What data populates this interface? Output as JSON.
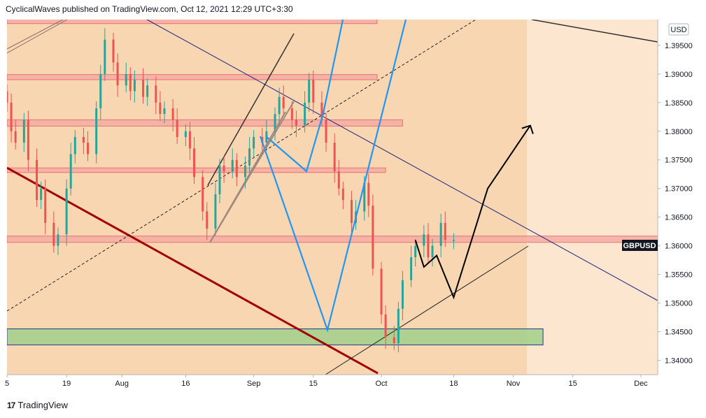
{
  "header": {
    "text": "CyclicalWaves published on TradingView.com, Oct 12, 2021 12:29 UTC+3:30"
  },
  "footer": {
    "logo_mark": "17",
    "brand": "TradingView"
  },
  "colors": {
    "bg": "#fce6cf",
    "shaded": "#f9d6b2",
    "zone": "#f4a6a0",
    "zone_border": "#e57373",
    "green_zone": "#a5d08d",
    "up": "#26a69a",
    "down": "#ef5350",
    "blue": "#2196f3",
    "navy": "#1a237e",
    "darkred": "#a30000",
    "black": "#000000"
  },
  "chart_data": {
    "type": "candlestick",
    "symbol": "GBPUSD",
    "currency": "USD",
    "last_price": 1.36,
    "y_range": [
      1.3375,
      1.3995
    ],
    "y_ticks": [
      "1.39500",
      "1.39000",
      "1.38500",
      "1.38000",
      "1.37500",
      "1.37000",
      "1.36500",
      "1.36000",
      "1.35500",
      "1.35000",
      "1.34500",
      "1.34000"
    ],
    "x_ticks": [
      "5",
      "19",
      "Aug",
      "16",
      "Sep",
      "15",
      "Oct",
      "18",
      "Nov",
      "15",
      "Dec"
    ],
    "candles_start": "2021-07-05",
    "candles_close": [
      1.385,
      1.38,
      1.378,
      1.382,
      1.375,
      1.368,
      1.37,
      1.364,
      1.36,
      1.362,
      1.37,
      1.376,
      1.379,
      1.378,
      1.376,
      1.384,
      1.39,
      1.396,
      1.392,
      1.388,
      1.39,
      1.387,
      1.389,
      1.386,
      1.388,
      1.385,
      1.383,
      1.384,
      1.382,
      1.379,
      1.38,
      1.377,
      1.372,
      1.366,
      1.363,
      1.369,
      1.374,
      1.373,
      1.375,
      1.372,
      1.374,
      1.377,
      1.379,
      1.378,
      1.38,
      1.383,
      1.386,
      1.384,
      1.382,
      1.381,
      1.385,
      1.389,
      1.385,
      1.382,
      1.378,
      1.373,
      1.37,
      1.368,
      1.364,
      1.366,
      1.371,
      1.367,
      1.356,
      1.348,
      1.344,
      1.343,
      1.349,
      1.354,
      1.358,
      1.36,
      1.362,
      1.358,
      1.36,
      1.364,
      1.361,
      1.361
    ],
    "horizontal_zones": [
      {
        "from": 1.3988,
        "to": 1.3998,
        "end": "2021-09-30"
      },
      {
        "from": 1.389,
        "to": 1.3899,
        "end": "2021-09-30"
      },
      {
        "from": 1.3809,
        "to": 1.382,
        "end": "2021-10-06"
      },
      {
        "from": 1.3728,
        "to": 1.3736,
        "end": "2021-10-02"
      },
      {
        "from": 1.3606,
        "to": 1.3617,
        "end": "2021-12-18"
      }
    ],
    "green_zone": {
      "from": 1.3427,
      "to": 1.3455,
      "start": "2021-07-05",
      "end": "2021-11-08"
    },
    "projection": [
      [
        "2021-10-09",
        1.361
      ],
      [
        "2021-10-11",
        1.3563
      ],
      [
        "2021-10-14",
        1.3583
      ],
      [
        "2021-10-18",
        1.351
      ],
      [
        "2021-10-26",
        1.37
      ],
      [
        "2021-11-05",
        1.381
      ]
    ]
  }
}
